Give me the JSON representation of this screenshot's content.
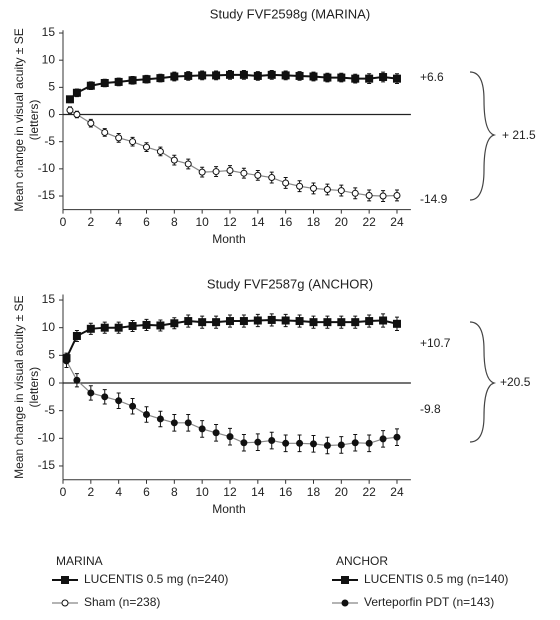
{
  "chart_data": [
    {
      "type": "line",
      "title": "Study FVF2598g (MARINA)",
      "xlabel": "Month",
      "ylabel": "Mean change in visual acuity ± SE",
      "ylabel_unit": "(letters)",
      "x": [
        0.5,
        1,
        2,
        3,
        4,
        5,
        6,
        7,
        8,
        9,
        10,
        11,
        12,
        13,
        14,
        15,
        16,
        17,
        18,
        19,
        20,
        21,
        22,
        23,
        24
      ],
      "xlim": [
        0,
        25
      ],
      "xticks": [
        0,
        2,
        4,
        6,
        8,
        10,
        12,
        14,
        16,
        18,
        20,
        22,
        24
      ],
      "ylim": [
        -17.5,
        15.5
      ],
      "yticks": [
        15,
        10,
        5,
        0,
        -5,
        -10,
        -15
      ],
      "hline": 0,
      "legend_title": "MARINA",
      "series": [
        {
          "name": "LUCENTIS 0.5 mg (n=240)",
          "color": "#111111",
          "line_color": "#111111",
          "marker": "square",
          "values": [
            2.8,
            4,
            5.3,
            5.8,
            6,
            6.3,
            6.5,
            6.7,
            7,
            7.1,
            7.2,
            7.2,
            7.3,
            7.3,
            7.1,
            7.3,
            7.2,
            7.1,
            7,
            6.8,
            6.8,
            6.6,
            6.6,
            6.9,
            6.6
          ],
          "errors": [
            0.6,
            0.7,
            0.7,
            0.7,
            0.7,
            0.7,
            0.7,
            0.7,
            0.8,
            0.8,
            0.8,
            0.8,
            0.8,
            0.8,
            0.8,
            0.8,
            0.8,
            0.8,
            0.8,
            0.8,
            0.8,
            0.8,
            0.9,
            0.9,
            0.9
          ]
        },
        {
          "name": "Sham (n=238)",
          "color": "#ffffff",
          "line_color": "#888888",
          "marker": "open-circle",
          "values": [
            0.8,
            0,
            -1.6,
            -3.3,
            -4.3,
            -5,
            -6,
            -6.8,
            -8.4,
            -9.1,
            -10.6,
            -10.5,
            -10.3,
            -10.8,
            -11.2,
            -11.6,
            -12.6,
            -13.2,
            -13.6,
            -13.8,
            -14,
            -14.5,
            -14.9,
            -15,
            -14.9
          ],
          "errors": [
            0.6,
            0.6,
            0.7,
            0.7,
            0.8,
            0.8,
            0.8,
            0.8,
            0.9,
            0.9,
            0.9,
            0.9,
            0.9,
            0.9,
            0.9,
            1,
            1,
            1,
            1,
            1,
            1,
            1,
            1,
            1,
            1
          ]
        }
      ],
      "annotations": [
        "+6.6",
        "-14.9",
        "+ 21.5"
      ]
    },
    {
      "type": "line",
      "title": "Study FVF2587g (ANCHOR)",
      "xlabel": "Month",
      "ylabel": "Mean change in visual acuity ± SE",
      "ylabel_unit": "(letters)",
      "x": [
        0.25,
        1,
        2,
        3,
        4,
        5,
        6,
        7,
        8,
        9,
        10,
        11,
        12,
        13,
        14,
        15,
        16,
        17,
        18,
        19,
        20,
        21,
        22,
        23,
        24
      ],
      "xlim": [
        0,
        25
      ],
      "xticks": [
        0,
        2,
        4,
        6,
        8,
        10,
        12,
        14,
        16,
        18,
        20,
        22,
        24
      ],
      "ylim": [
        -17.5,
        16
      ],
      "yticks": [
        15,
        10,
        5,
        0,
        -5,
        -10,
        -15
      ],
      "hline": 0,
      "legend_title": "ANCHOR",
      "series": [
        {
          "name": "LUCENTIS 0.5 mg (n=140)",
          "color": "#111111",
          "line_color": "#111111",
          "marker": "square",
          "values": [
            4.5,
            8.5,
            9.8,
            10,
            10,
            10.3,
            10.5,
            10.4,
            10.8,
            11.2,
            11,
            11,
            11.2,
            11.2,
            11.3,
            11.4,
            11.3,
            11.2,
            11,
            11,
            11,
            11,
            11.2,
            11.3,
            10.7
          ],
          "errors": [
            0.9,
            1,
            1,
            1,
            1,
            1,
            1,
            1,
            1,
            1.1,
            1.1,
            1.1,
            1.1,
            1.1,
            1.1,
            1.1,
            1.1,
            1.1,
            1.1,
            1.1,
            1.1,
            1.1,
            1.1,
            1.2,
            1.2
          ]
        },
        {
          "name": "Verteporfin PDT (n=143)",
          "color": "#111111",
          "line_color": "#888888",
          "marker": "circle",
          "values": [
            4,
            0.5,
            -1.8,
            -2.5,
            -3.2,
            -4.2,
            -5.7,
            -6.5,
            -7.2,
            -7.2,
            -8.3,
            -9,
            -9.7,
            -10.8,
            -10.7,
            -10.4,
            -10.9,
            -10.9,
            -11,
            -11.3,
            -11.2,
            -10.8,
            -10.9,
            -10.1,
            -9.8
          ],
          "errors": [
            1.2,
            1.2,
            1.3,
            1.3,
            1.4,
            1.4,
            1.4,
            1.4,
            1.5,
            1.5,
            1.5,
            1.5,
            1.5,
            1.5,
            1.5,
            1.5,
            1.5,
            1.5,
            1.5,
            1.5,
            1.5,
            1.5,
            1.5,
            1.5,
            1.5
          ]
        }
      ],
      "annotations": [
        "+10.7",
        "-9.8",
        "+20.5"
      ]
    }
  ]
}
